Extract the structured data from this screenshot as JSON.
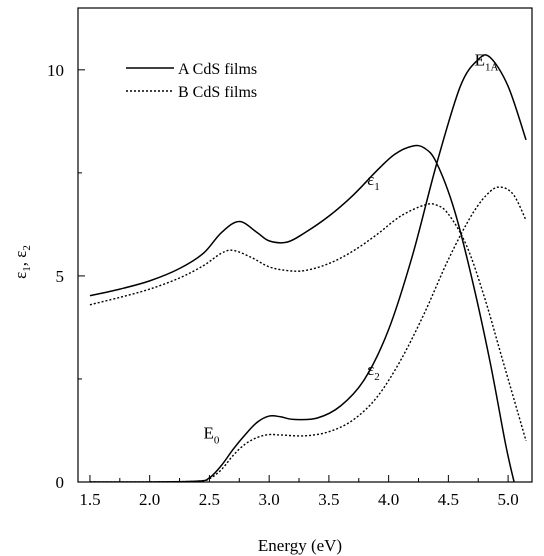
{
  "chart_data": {
    "type": "line",
    "xlabel": "Energy (eV)",
    "ylabel": {
      "base": "ε",
      "sub1": "1",
      "sep": ", ",
      "base2": "ε",
      "sub2": "2"
    },
    "xlim": [
      1.4,
      5.2
    ],
    "ylim": [
      0,
      11.5
    ],
    "x_ticks": [
      1.5,
      2.0,
      2.5,
      3.0,
      3.5,
      4.0,
      4.5,
      5.0
    ],
    "x_tick_labels": [
      "1.5",
      "2.0",
      "2.5",
      "3.0",
      "3.5",
      "4.0",
      "4.5",
      "5.0"
    ],
    "y_ticks": [
      0,
      5,
      10
    ],
    "y_tick_labels": [
      "0",
      "5",
      "10"
    ],
    "grid": false,
    "legend": {
      "position": "top-left",
      "entries": [
        {
          "label": "A CdS films",
          "style": "solid"
        },
        {
          "label": "B CdS films",
          "style": "dotted"
        }
      ]
    },
    "annotations": [
      {
        "base": "E",
        "sub": "1A",
        "x": 4.72,
        "y": 10.1
      },
      {
        "base": "ε",
        "sub": "1",
        "x": 3.82,
        "y": 7.2
      },
      {
        "base": "ε",
        "sub": "2",
        "x": 3.82,
        "y": 2.6
      },
      {
        "base": "E",
        "sub": "0",
        "x": 2.45,
        "y": 1.05
      }
    ],
    "series": [
      {
        "group": "A CdS films",
        "quantity": "ε1",
        "style": "solid",
        "x": [
          1.5,
          1.75,
          2.0,
          2.25,
          2.45,
          2.6,
          2.75,
          2.9,
          3.0,
          3.15,
          3.3,
          3.5,
          3.7,
          3.9,
          4.05,
          4.2,
          4.3,
          4.4,
          4.55,
          4.7,
          4.85,
          4.98,
          5.05
        ],
        "values": [
          4.52,
          4.68,
          4.88,
          5.18,
          5.55,
          6.05,
          6.32,
          6.05,
          5.85,
          5.82,
          6.05,
          6.45,
          6.95,
          7.55,
          7.95,
          8.15,
          8.1,
          7.75,
          6.6,
          4.9,
          2.9,
          0.9,
          0.0
        ]
      },
      {
        "group": "A CdS films",
        "quantity": "ε2",
        "style": "solid",
        "x": [
          1.5,
          2.0,
          2.4,
          2.5,
          2.6,
          2.7,
          2.8,
          2.9,
          3.0,
          3.1,
          3.2,
          3.4,
          3.6,
          3.8,
          4.0,
          4.2,
          4.4,
          4.6,
          4.75,
          4.85,
          5.0,
          5.15
        ],
        "values": [
          0.0,
          0.0,
          0.02,
          0.1,
          0.4,
          0.8,
          1.15,
          1.45,
          1.6,
          1.58,
          1.52,
          1.55,
          1.85,
          2.5,
          3.7,
          5.5,
          7.7,
          9.6,
          10.25,
          10.3,
          9.6,
          8.3
        ]
      },
      {
        "group": "B CdS films",
        "quantity": "ε1",
        "style": "dotted",
        "x": [
          1.5,
          1.75,
          2.0,
          2.25,
          2.45,
          2.6,
          2.7,
          2.85,
          3.0,
          3.15,
          3.3,
          3.5,
          3.7,
          3.9,
          4.1,
          4.3,
          4.4,
          4.5,
          4.65,
          4.8,
          4.95,
          5.15
        ],
        "values": [
          4.3,
          4.48,
          4.68,
          4.95,
          5.25,
          5.55,
          5.62,
          5.45,
          5.22,
          5.13,
          5.13,
          5.3,
          5.6,
          6.0,
          6.45,
          6.72,
          6.72,
          6.5,
          5.75,
          4.5,
          3.0,
          1.0
        ]
      },
      {
        "group": "B CdS films",
        "quantity": "ε2",
        "style": "dotted",
        "x": [
          1.5,
          2.0,
          2.4,
          2.5,
          2.6,
          2.7,
          2.8,
          2.9,
          3.0,
          3.1,
          3.3,
          3.5,
          3.7,
          3.9,
          4.1,
          4.3,
          4.5,
          4.7,
          4.85,
          4.95,
          5.05,
          5.15
        ],
        "values": [
          0.0,
          0.0,
          0.02,
          0.08,
          0.3,
          0.65,
          0.92,
          1.08,
          1.15,
          1.14,
          1.12,
          1.22,
          1.5,
          2.05,
          2.95,
          4.1,
          5.4,
          6.5,
          7.05,
          7.15,
          6.95,
          6.35
        ]
      }
    ]
  }
}
